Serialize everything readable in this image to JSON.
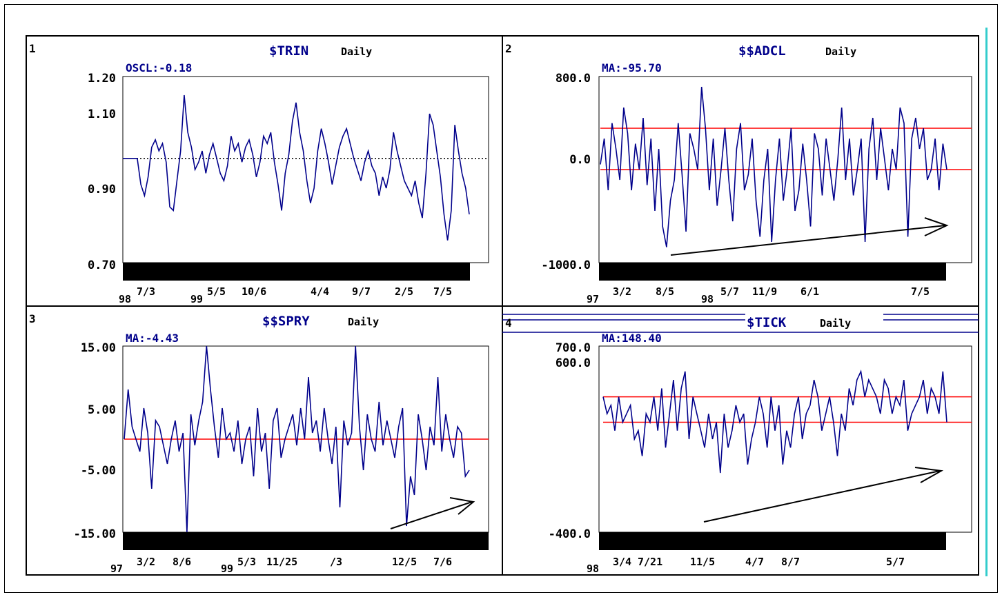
{
  "colors": {
    "series": "#00008b",
    "ref": "#ff0000",
    "title": "#00008b",
    "axis": "#000000",
    "arrow": "#000000"
  },
  "panels": [
    {
      "num": "1",
      "title_sym": "$TRIN",
      "title_rest": "Daily",
      "indicator": "OSCL:-0.18",
      "y_labels": [
        "1.20",
        "1.10",
        "0.90",
        "0.70"
      ],
      "x_year_start": "98",
      "x_year_mid": "99",
      "x_dates": [
        "7/3",
        "5/5",
        "10/6",
        "4/4",
        "9/7",
        "2/5",
        "7/5"
      ]
    },
    {
      "num": "2",
      "title_sym": "$$ADCL",
      "title_rest": "Daily",
      "indicator": "MA:-95.70",
      "y_labels": [
        "800.0",
        "0.0",
        "-1000.0"
      ],
      "x_year_start": "97",
      "x_year_mid": "98",
      "x_dates": [
        "3/2",
        "8/5",
        "5/7",
        "11/9",
        "6/1",
        "7/5"
      ]
    },
    {
      "num": "3",
      "title_sym": "$$SPRY",
      "title_rest": "Daily",
      "indicator": "MA:-4.43",
      "y_labels": [
        "15.00",
        "5.00",
        "-5.00",
        "-15.00"
      ],
      "x_year_start": "97",
      "x_year_mid": "99",
      "x_dates": [
        "3/2",
        "8/6",
        "5/3",
        "11/25",
        "/3",
        "12/5",
        "7/6"
      ]
    },
    {
      "num": "4",
      "title_sym": "$TICK",
      "title_rest": "Daily",
      "indicator": "MA:148.40",
      "y_labels": [
        "700.0",
        "600.0",
        "-400.0"
      ],
      "x_year_start": "98",
      "x_year_mid": "",
      "x_dates": [
        "3/4",
        "7/21",
        "11/5",
        "4/7",
        "8/7",
        "5/7"
      ]
    }
  ],
  "chart_data": [
    {
      "type": "line",
      "title": "$TRIN Daily",
      "ylim": [
        0.7,
        1.2
      ],
      "reference_lines": [
        0.98
      ],
      "series": [
        {
          "values": [
            0.98,
            0.98,
            0.98,
            0.98,
            0.98,
            0.91,
            0.88,
            0.93,
            1.01,
            1.03,
            1.0,
            1.02,
            0.97,
            0.85,
            0.84,
            0.92,
            1.0,
            1.15,
            1.05,
            1.01,
            0.95,
            0.97,
            1.0,
            0.94,
            0.99,
            1.02,
            0.98,
            0.94,
            0.92,
            0.96,
            1.04,
            1.0,
            1.02,
            0.97,
            1.01,
            1.03,
            0.99,
            0.93,
            0.97,
            1.04,
            1.02,
            1.05,
            0.97,
            0.91,
            0.84,
            0.94,
            0.99,
            1.08,
            1.13,
            1.05,
            1.0,
            0.92,
            0.86,
            0.9,
            1.0,
            1.06,
            1.02,
            0.97,
            0.91,
            0.96,
            1.01,
            1.04,
            1.06,
            1.02,
            0.98,
            0.95,
            0.92,
            0.97,
            1.0,
            0.96,
            0.94,
            0.88,
            0.93,
            0.9,
            0.95,
            1.05,
            1.0,
            0.96,
            0.92,
            0.9,
            0.88,
            0.92,
            0.86,
            0.82,
            0.94,
            1.1,
            1.07,
            1.0,
            0.93,
            0.83,
            0.76,
            0.84,
            1.07,
            1.0,
            0.94,
            0.9,
            0.83
          ]
        }
      ]
    },
    {
      "type": "line",
      "title": "$$ADCL Daily",
      "ylim": [
        -1000,
        800
      ],
      "reference_lines": [
        300,
        -100
      ],
      "series": [
        {
          "values": [
            -50,
            200,
            -300,
            350,
            100,
            -200,
            500,
            250,
            -300,
            150,
            -100,
            400,
            -250,
            200,
            -500,
            100,
            -650,
            -850,
            -400,
            -200,
            350,
            -150,
            -700,
            250,
            100,
            -100,
            700,
            300,
            -300,
            200,
            -450,
            -100,
            300,
            -200,
            -600,
            100,
            350,
            -300,
            -150,
            200,
            -400,
            -750,
            -200,
            100,
            -800,
            -200,
            200,
            -400,
            -100,
            300,
            -500,
            -300,
            150,
            -200,
            -650,
            250,
            100,
            -350,
            200,
            -100,
            -400,
            0,
            500,
            -200,
            200,
            -350,
            -100,
            200,
            -800,
            100,
            400,
            -200,
            300,
            0,
            -300,
            100,
            -100,
            500,
            350,
            -750,
            200,
            400,
            100,
            300,
            -200,
            -100,
            200,
            -300,
            150,
            -100
          ]
        }
      ]
    },
    {
      "type": "line",
      "title": "$$SPRY Daily",
      "ylim": [
        -15,
        15
      ],
      "reference_lines": [
        0
      ],
      "series": [
        {
          "values": [
            0,
            8,
            2,
            0,
            -2,
            5,
            1,
            -8,
            3,
            2,
            -1,
            -4,
            0,
            3,
            -2,
            1,
            -15,
            4,
            -1,
            3,
            6,
            15,
            8,
            2,
            -3,
            5,
            0,
            1,
            -2,
            3,
            -4,
            0,
            2,
            -6,
            5,
            -2,
            1,
            -8,
            3,
            5,
            -3,
            0,
            2,
            4,
            -1,
            5,
            0,
            10,
            1,
            3,
            -2,
            5,
            0,
            -4,
            2,
            -11,
            3,
            -1,
            1,
            15,
            2,
            -5,
            4,
            0,
            -2,
            6,
            -1,
            3,
            0,
            -3,
            2,
            5,
            -14,
            -6,
            -9,
            4,
            0,
            -5,
            2,
            -1,
            10,
            -2,
            4,
            0,
            -3,
            2,
            1,
            -6,
            -5
          ]
        }
      ]
    },
    {
      "type": "line",
      "title": "$TICK Daily",
      "ylim": [
        -400,
        700
      ],
      "reference_lines": [
        400,
        250
      ],
      "series": [
        {
          "values": [
            400,
            300,
            350,
            200,
            400,
            250,
            300,
            350,
            150,
            200,
            50,
            300,
            250,
            400,
            200,
            450,
            100,
            300,
            500,
            200,
            450,
            550,
            150,
            400,
            300,
            200,
            100,
            300,
            150,
            250,
            -50,
            300,
            100,
            200,
            350,
            250,
            300,
            0,
            150,
            250,
            400,
            300,
            100,
            400,
            200,
            350,
            0,
            200,
            100,
            300,
            400,
            150,
            300,
            350,
            500,
            400,
            200,
            300,
            400,
            250,
            50,
            300,
            200,
            450,
            350,
            500,
            550,
            400,
            500,
            450,
            400,
            300,
            500,
            450,
            300,
            400,
            350,
            500,
            200,
            300,
            350,
            400,
            500,
            300,
            450,
            400,
            300,
            550,
            250
          ]
        }
      ]
    }
  ]
}
